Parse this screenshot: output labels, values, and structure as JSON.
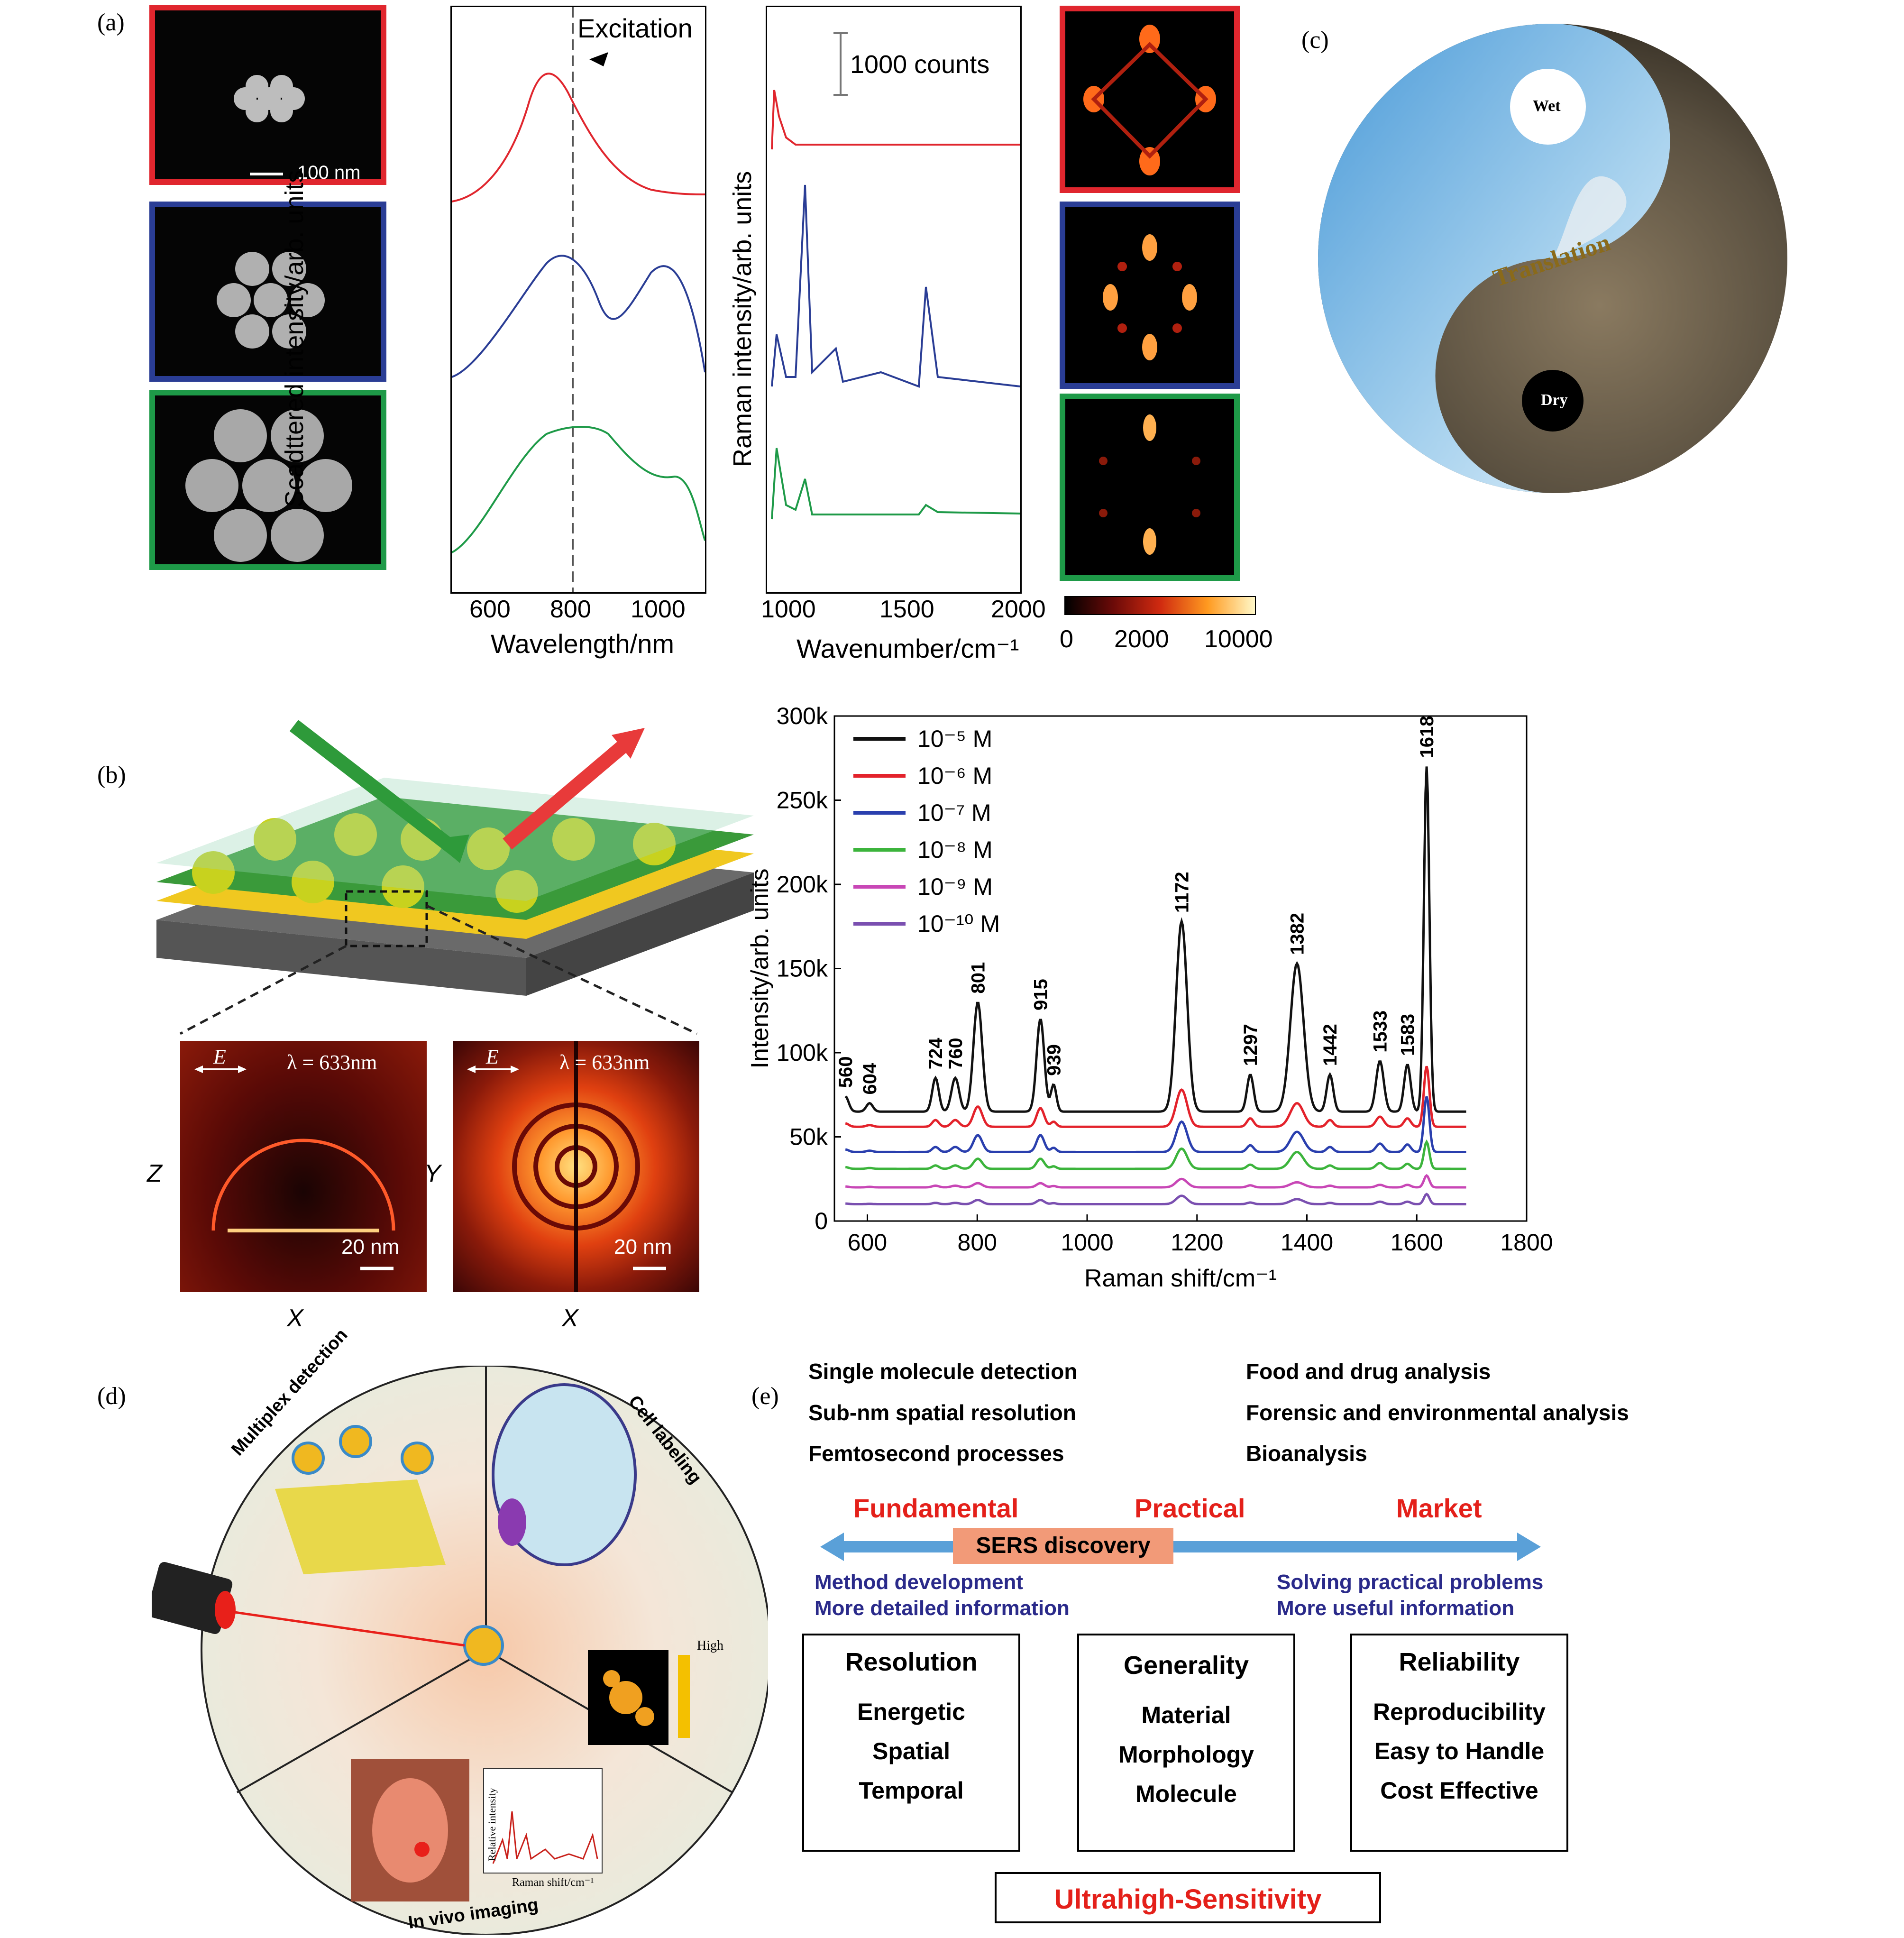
{
  "panels": {
    "a": "(a)",
    "b": "(b)",
    "c": "(c)",
    "d": "(d)",
    "e": "(e)"
  },
  "panel_a": {
    "scale_bar": "100 nm",
    "colors": {
      "row1": "#e0262e",
      "row2": "#2a3d95",
      "row3": "#1e9a48"
    },
    "scatter_ylabel": "Scadttered intensity/arb. units",
    "scatter_xlabel": "Wavelength/nm",
    "scatter_ticks": [
      "600",
      "800",
      "1000"
    ],
    "excitation_label": "Excitation",
    "raman_ylabel": "Raman intensity/arb. units",
    "raman_xlabel": "Wavenumber/cm⁻¹",
    "raman_ticks": [
      "1000",
      "1500",
      "2000"
    ],
    "counts_label": "1000 counts",
    "colorbar_ticks": [
      "0",
      "2000",
      "10000"
    ]
  },
  "panel_b": {
    "E_label": "E",
    "lambda_label": "λ = 633nm",
    "scale_bar": "20 nm",
    "axis_z": "Z",
    "axis_y": "Y",
    "axis_x": "X"
  },
  "panel_c": {
    "wet": "Wet",
    "dry": "Dry",
    "translation": "Translation"
  },
  "panel_d": {
    "multiplex": "Multiplex detection",
    "cell_labeling": "Cell labeling",
    "in_vivo": "In vivo imaging",
    "high": "High",
    "rel_intensity": "Relative intensity",
    "raman_shift": "Raman shift/cm⁻¹"
  },
  "panel_e": {
    "left_list": [
      "Single molecule detection",
      "Sub-nm spatial resolution",
      "Femtosecond processes"
    ],
    "right_list": [
      "Food and drug analysis",
      "Forensic and environmental analysis",
      "Bioanalysis"
    ],
    "fundamental": "Fundamental",
    "practical": "Practical",
    "market": "Market",
    "sers_discovery": "SERS discovery",
    "left_notes": [
      "Method development",
      "More detailed information"
    ],
    "right_notes": [
      "Solving practical problems",
      "More useful information"
    ],
    "boxes": [
      {
        "title": "Resolution",
        "items": [
          "Energetic",
          "Spatial",
          "Temporal"
        ]
      },
      {
        "title": "Generality",
        "items": [
          "Material",
          "Morphology",
          "Molecule"
        ]
      },
      {
        "title": "Reliability",
        "items": [
          "Reproducibility",
          "Easy to Handle",
          "Cost Effective"
        ]
      }
    ],
    "bottom": "Ultrahigh-Sensitivity"
  },
  "chart_data": {
    "type": "line",
    "xlabel": "Raman shift/cm⁻¹",
    "ylabel": "Intensity/arb. units",
    "xlim": [
      540,
      1800
    ],
    "ylim": [
      0,
      300000
    ],
    "x_ticks": [
      "600",
      "800",
      "1000",
      "1200",
      "1400",
      "1600",
      "1800"
    ],
    "y_ticks": [
      "0",
      "50k",
      "100k",
      "150k",
      "200k",
      "250k",
      "300k"
    ],
    "legend_position": "top-left",
    "peaks": [
      560,
      604,
      724,
      760,
      801,
      915,
      939,
      1172,
      1297,
      1382,
      1442,
      1533,
      1583,
      1618
    ],
    "peak_labels": [
      "560",
      "604",
      "724",
      "760",
      "801",
      "915",
      "939",
      "1172",
      "1297",
      "1382",
      "1442",
      "1533",
      "1583",
      "1618"
    ],
    "series": [
      {
        "name": "10⁻⁵ M",
        "color": "#111111",
        "baseline": 65000,
        "heights": [
          9000,
          5000,
          20000,
          20000,
          65000,
          55000,
          16000,
          113000,
          22000,
          88000,
          22000,
          30000,
          28000,
          205000
        ]
      },
      {
        "name": "10⁻⁶ M",
        "color": "#e3222b",
        "baseline": 56000,
        "heights": [
          2000,
          1000,
          4000,
          4000,
          12000,
          11000,
          3000,
          22000,
          5000,
          14000,
          4000,
          6000,
          5000,
          36000
        ]
      },
      {
        "name": "10⁻⁷ M",
        "color": "#2a3fae",
        "baseline": 41000,
        "heights": [
          1500,
          800,
          3000,
          3000,
          10000,
          10000,
          2500,
          18000,
          4000,
          12000,
          3000,
          5000,
          4500,
          33000
        ]
      },
      {
        "name": "10⁻⁸ M",
        "color": "#3cb43c",
        "baseline": 31000,
        "heights": [
          1000,
          500,
          2000,
          2000,
          6000,
          6000,
          1500,
          12000,
          2500,
          10000,
          2000,
          3500,
          3000,
          16000
        ]
      },
      {
        "name": "10⁻⁹ M",
        "color": "#c847b6",
        "baseline": 20000,
        "heights": [
          500,
          300,
          1000,
          1000,
          2500,
          2500,
          800,
          5000,
          1200,
          3000,
          1000,
          1500,
          1500,
          7000
        ]
      },
      {
        "name": "10⁻¹⁰ M",
        "color": "#7a4fb0",
        "baseline": 10000,
        "heights": [
          400,
          200,
          800,
          800,
          2500,
          2500,
          600,
          5000,
          1000,
          3000,
          800,
          1500,
          1500,
          6000
        ]
      }
    ]
  }
}
